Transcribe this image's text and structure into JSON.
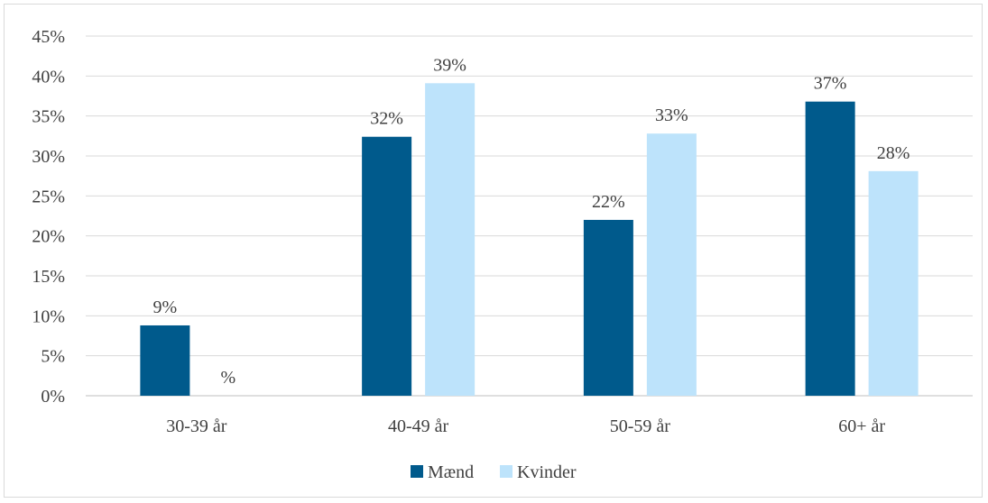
{
  "chart_data": {
    "type": "bar",
    "categories": [
      "30-39 år",
      "40-49 år",
      "50-59 år",
      "60+ år"
    ],
    "series": [
      {
        "name": "Mænd",
        "color": "#005a8c",
        "values": [
          8.8,
          32.4,
          22.0,
          36.8
        ],
        "labels": [
          "9%",
          "32%",
          "22%",
          "37%"
        ]
      },
      {
        "name": "Kvinder",
        "color": "#bde3fb",
        "values": [
          0,
          39.1,
          32.8,
          28.1
        ],
        "labels": [
          "%",
          "39%",
          "33%",
          "28%"
        ]
      }
    ],
    "ylim": [
      0,
      45
    ],
    "yticks": [
      0,
      5,
      10,
      15,
      20,
      25,
      30,
      35,
      40,
      45
    ],
    "ytick_labels": [
      "0%",
      "5%",
      "10%",
      "15%",
      "20%",
      "25%",
      "30%",
      "35%",
      "40%",
      "45%"
    ],
    "gridlines": true,
    "legend_position": "bottom"
  }
}
